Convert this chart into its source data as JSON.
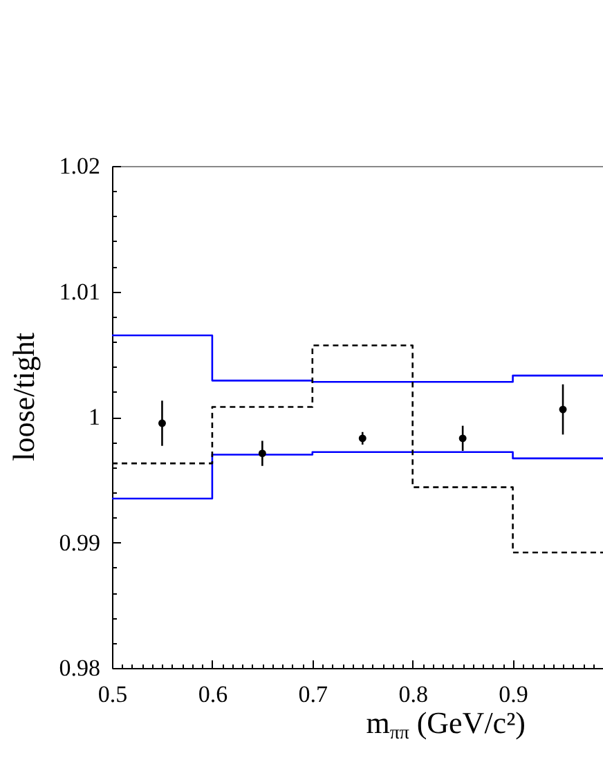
{
  "chart_data": {
    "type": "scatter",
    "xlabel": "m$_{ππ}$ (GeV/c²)",
    "ylabel": "loose/tight",
    "xlim": [
      0.5,
      0.99
    ],
    "ylim": [
      0.98,
      1.02
    ],
    "xticks": [
      0.5,
      {
        "value": 0.51,
        "label": null
      },
      {
        "value": 0.52,
        "label": null
      },
      {
        "value": 0.53,
        "label": null
      },
      {
        "value": 0.54,
        "label": null
      },
      {
        "value": 0.55,
        "label": null
      },
      {
        "value": 0.56,
        "label": null
      },
      {
        "value": 0.57,
        "label": null
      },
      {
        "value": 0.58,
        "label": null
      },
      {
        "value": 0.59,
        "label": null
      },
      0.6,
      {
        "value": 0.61,
        "label": null
      },
      {
        "value": 0.62,
        "label": null
      },
      {
        "value": 0.63,
        "label": null
      },
      {
        "value": 0.64,
        "label": null
      },
      {
        "value": 0.65,
        "label": null
      },
      {
        "value": 0.66,
        "label": null
      },
      {
        "value": 0.67,
        "label": null
      },
      {
        "value": 0.68,
        "label": null
      },
      {
        "value": 0.69,
        "label": null
      },
      0.7,
      {
        "value": 0.71,
        "label": null
      },
      {
        "value": 0.72,
        "label": null
      },
      {
        "value": 0.73,
        "label": null
      },
      {
        "value": 0.74,
        "label": null
      },
      {
        "value": 0.75,
        "label": null
      },
      {
        "value": 0.76,
        "label": null
      },
      {
        "value": 0.77,
        "label": null
      },
      {
        "value": 0.78,
        "label": null
      },
      {
        "value": 0.79,
        "label": null
      },
      0.8,
      {
        "value": 0.81,
        "label": null
      },
      {
        "value": 0.82,
        "label": null
      },
      {
        "value": 0.83,
        "label": null
      },
      {
        "value": 0.84,
        "label": null
      },
      {
        "value": 0.85,
        "label": null
      },
      {
        "value": 0.86,
        "label": null
      },
      {
        "value": 0.87,
        "label": null
      },
      {
        "value": 0.88,
        "label": null
      },
      {
        "value": 0.89,
        "label": null
      },
      0.9,
      {
        "value": 0.91,
        "label": null
      },
      {
        "value": 0.92,
        "label": null
      },
      {
        "value": 0.93,
        "label": null
      },
      {
        "value": 0.94,
        "label": null
      },
      {
        "value": 0.95,
        "label": null
      },
      {
        "value": 0.96,
        "label": null
      },
      {
        "value": 0.97,
        "label": null
      },
      {
        "value": 0.98,
        "label": null
      }
    ],
    "yticks": [
      0.98,
      {
        "value": 0.982,
        "label": null
      },
      {
        "value": 0.984,
        "label": null
      },
      {
        "value": 0.986,
        "label": null
      },
      {
        "value": 0.988,
        "label": null
      },
      0.99,
      {
        "value": 0.992,
        "label": null
      },
      {
        "value": 0.994,
        "label": null
      },
      {
        "value": 0.996,
        "label": null
      },
      {
        "value": 0.998,
        "label": null
      },
      1,
      {
        "value": 1.002,
        "label": null
      },
      {
        "value": 1.004,
        "label": null
      },
      {
        "value": 1.006,
        "label": null
      },
      {
        "value": 1.008,
        "label": null
      },
      1.01,
      {
        "value": 1.012,
        "label": null
      },
      {
        "value": 1.014,
        "label": null
      },
      {
        "value": 1.016,
        "label": null
      },
      {
        "value": 1.018,
        "label": null
      },
      1.02
    ],
    "grid": false,
    "series": [
      {
        "type": "step",
        "color": "#0000ff",
        "line_style": "solid",
        "marker": "none",
        "x": [
          0.5,
          0.6,
          0.7,
          0.8,
          0.9,
          0.99
        ],
        "values": [
          1.0065,
          1.0029,
          1.0028,
          1.0028,
          1.0033,
          1.0033
        ]
      },
      {
        "type": "step",
        "color": "#0000ff",
        "line_style": "solid",
        "marker": "none",
        "x": [
          0.5,
          0.6,
          0.7,
          0.8,
          0.9,
          0.99
        ],
        "values": [
          0.9935,
          0.997,
          0.9972,
          0.9972,
          0.9967,
          0.9967
        ]
      },
      {
        "type": "step",
        "color": "#000000",
        "line_style": "dashed",
        "marker": "none",
        "x": [
          0.5,
          0.6,
          0.7,
          0.8,
          0.9,
          0.99
        ],
        "values": [
          0.9963,
          1.0008,
          1.0057,
          0.9944,
          0.9892,
          0.9892
        ]
      },
      {
        "color": "#000000",
        "marker": "circle",
        "x": [
          0.55,
          0.65,
          0.75,
          0.85,
          0.95
        ],
        "values": [
          0.9995,
          0.9971,
          0.9983,
          0.9983,
          1.0006
        ],
        "errors": [
          0.0018,
          0.001,
          0.0005,
          0.001,
          0.002
        ]
      }
    ]
  }
}
